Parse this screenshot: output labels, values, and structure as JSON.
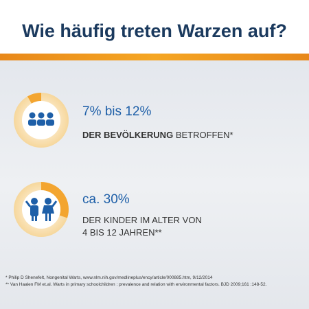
{
  "header": {
    "title": "Wie häufig treten Warzen auf?"
  },
  "items": [
    {
      "headline": "7% bis 12%",
      "description": {
        "bold": "DER BEVÖLKERUNG",
        "normal": "BETROFFEN*"
      }
    },
    {
      "headline": "ca. 30%",
      "description": {
        "lines": [
          "DER KINDER IM ALTER VON",
          "4 BIS 12 JAHREN**"
        ]
      }
    }
  ],
  "footnotes": [
    "* Philip D Shenefelt, Nongenital Warts, www.nlm.nih.gov/medlineplus/ency/article/000885.htm, 9/12/2014",
    "** Van Haalen FM et.al. Warts in primary schoolchildren : prevalence and relation with environmental factors. BJD 2009;161 :148-52."
  ]
}
